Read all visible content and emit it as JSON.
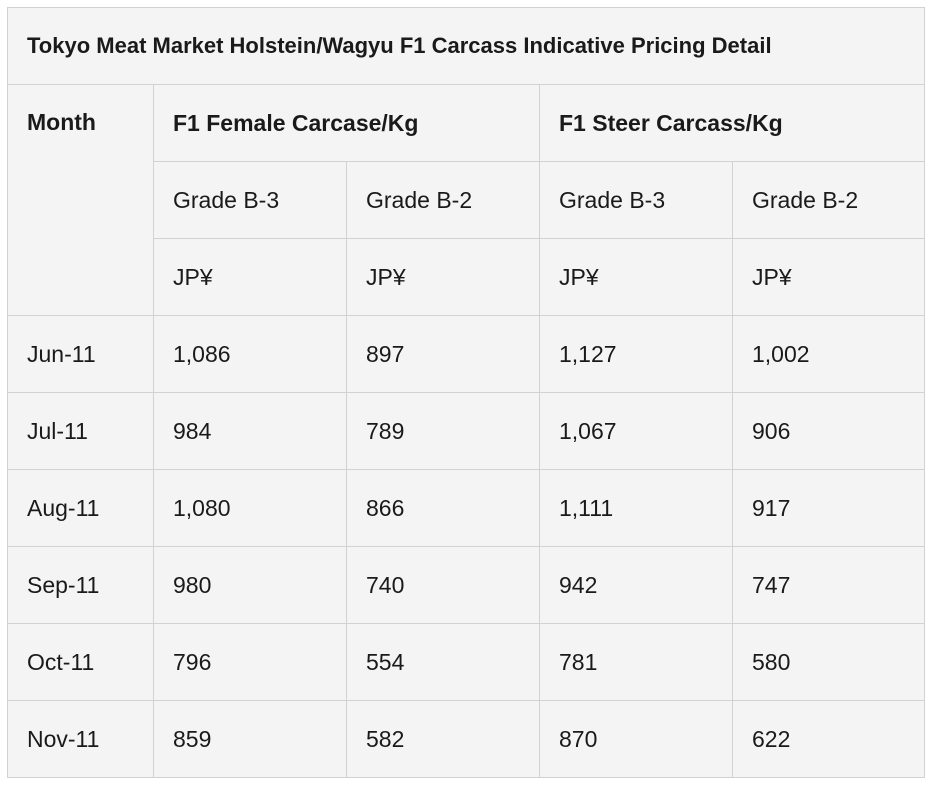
{
  "table": {
    "title": "Tokyo Meat Market Holstein/Wagyu F1 Carcass Indicative Pricing Detail",
    "month_header": "Month",
    "groups": [
      "F1 Female Carcase/Kg",
      "F1 Steer Carcass/Kg"
    ],
    "grades": [
      "Grade B-3",
      "Grade B-2",
      "Grade B-3",
      "Grade B-2"
    ],
    "units": [
      "JP¥",
      "JP¥",
      "JP¥",
      "JP¥"
    ],
    "rows": [
      [
        "Jun-11",
        "1,086",
        "897",
        "1,127",
        "1,002"
      ],
      [
        "Jul-11",
        "984",
        "789",
        "1,067",
        "906"
      ],
      [
        "Aug-11",
        "1,080",
        "866",
        "1,111",
        "917"
      ],
      [
        "Sep-11",
        "980",
        "740",
        "942",
        "747"
      ],
      [
        "Oct-11",
        "796",
        "554",
        "781",
        "580"
      ],
      [
        "Nov-11",
        "859",
        "582",
        "870",
        "622"
      ]
    ]
  }
}
